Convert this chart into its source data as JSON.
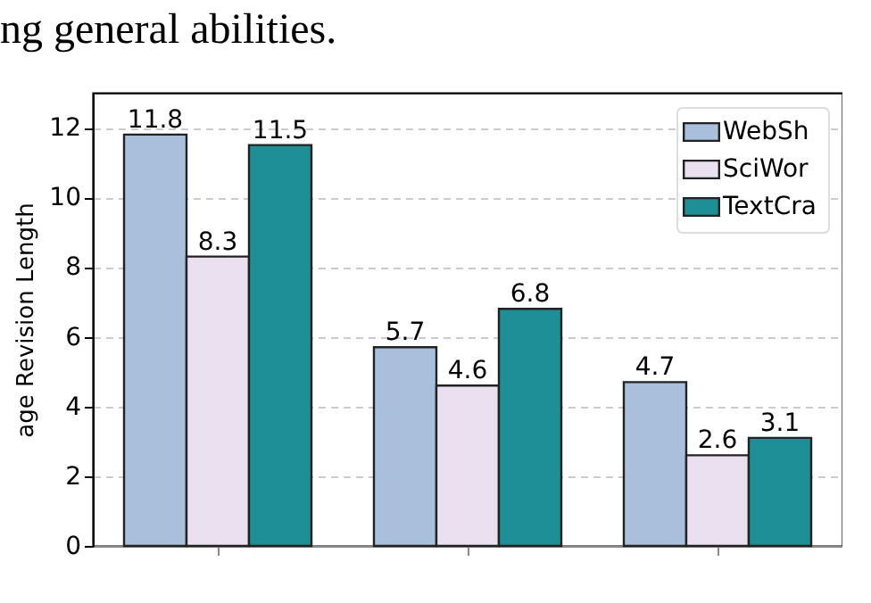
{
  "chart_data": {
    "type": "bar",
    "ylabel": "age Revision Length",
    "annotations": [
      "ng general abilities."
    ],
    "categories": [
      null,
      null,
      null
    ],
    "series": [
      {
        "name": "WebSh",
        "color": "#a9bfdc",
        "values": [
          11.8,
          5.7,
          4.7
        ]
      },
      {
        "name": "SciWor",
        "color": "#ebe0ef",
        "values": [
          8.3,
          4.6,
          2.6
        ]
      },
      {
        "name": "TextCra",
        "color": "#1e8f96",
        "values": [
          11.5,
          6.8,
          3.1
        ]
      }
    ],
    "ylim": [
      0,
      13
    ],
    "yticks": [
      0,
      2,
      4,
      6,
      8,
      10,
      12
    ],
    "grid": "y",
    "legend": "top right",
    "data_labels": true
  }
}
